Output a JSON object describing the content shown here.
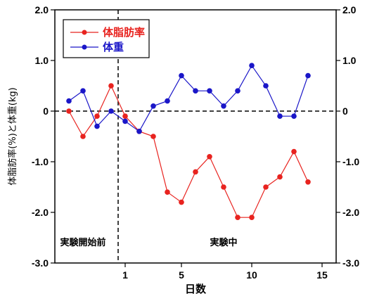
{
  "chart_data": {
    "type": "line",
    "title": "",
    "xlabel": "日数",
    "ylabel": "体脂肪率(%)と体重(kg)",
    "xlim": [
      -4,
      16
    ],
    "ylim": [
      -3.0,
      2.0
    ],
    "x_ticks": [
      1,
      5,
      10,
      15
    ],
    "x_tick_labels": [
      "1",
      "5",
      "10",
      "15"
    ],
    "y_ticks": [
      -3.0,
      -2.0,
      -1.0,
      0,
      1.0,
      2.0
    ],
    "y_tick_labels": [
      "-3.0",
      "-2.0",
      "-1.0",
      "0",
      "1.0",
      "2.0"
    ],
    "y_ticks_right": true,
    "grid": false,
    "legend_position": "top-left",
    "reference_lines": [
      {
        "orientation": "horizontal",
        "value": 0,
        "style": "dashed"
      },
      {
        "orientation": "vertical",
        "value": 0.5,
        "style": "dashed"
      }
    ],
    "annotations": [
      {
        "text": "実験開始前",
        "x": -2.0,
        "y": -2.65
      },
      {
        "text": "実験中",
        "x": 8.0,
        "y": -2.65
      }
    ],
    "x": [
      -3,
      -2,
      -1,
      0,
      1,
      2,
      3,
      4,
      5,
      6,
      7,
      8,
      9,
      10,
      11,
      12,
      13,
      14
    ],
    "series": [
      {
        "name": "体脂肪率",
        "color": "#e8231f",
        "values": [
          0.0,
          -0.5,
          -0.1,
          0.5,
          -0.1,
          -0.4,
          -0.5,
          -1.6,
          -1.8,
          -1.2,
          -0.9,
          -1.5,
          -2.1,
          -2.1,
          -1.5,
          -1.3,
          -0.8,
          -1.4
        ]
      },
      {
        "name": "体重",
        "color": "#1a16c8",
        "values": [
          0.2,
          0.4,
          -0.3,
          0.0,
          -0.2,
          -0.4,
          0.1,
          0.2,
          0.7,
          0.4,
          0.4,
          0.1,
          0.4,
          0.9,
          0.5,
          -0.1,
          -0.1,
          0.7
        ]
      }
    ]
  }
}
